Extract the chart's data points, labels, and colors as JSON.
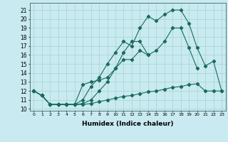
{
  "xlabel": "Humidex (Indice chaleur)",
  "xlim": [
    -0.5,
    23.5
  ],
  "ylim": [
    9.8,
    21.8
  ],
  "yticks": [
    10,
    11,
    12,
    13,
    14,
    15,
    16,
    17,
    18,
    19,
    20,
    21
  ],
  "xticks": [
    0,
    1,
    2,
    3,
    4,
    5,
    6,
    7,
    8,
    9,
    10,
    11,
    12,
    13,
    14,
    15,
    16,
    17,
    18,
    19,
    20,
    21,
    22,
    23
  ],
  "bg_color": "#c8eaf0",
  "grid_color": "#9ecfcc",
  "line_color": "#1a6b5a",
  "lines": [
    {
      "x": [
        0,
        1,
        2,
        3,
        4,
        5,
        6,
        7,
        8,
        9,
        10,
        11,
        12,
        13,
        14,
        15,
        16,
        17,
        18,
        19,
        20,
        21,
        22,
        23
      ],
      "y": [
        12,
        11.5,
        10.5,
        10.5,
        10.5,
        10.5,
        10.5,
        10.6,
        10.8,
        11.0,
        11.2,
        11.4,
        11.5,
        11.7,
        11.9,
        12.0,
        12.2,
        12.4,
        12.5,
        12.7,
        12.8,
        12.0,
        12.0,
        12.0
      ]
    },
    {
      "x": [
        0,
        1,
        2,
        3,
        4,
        5,
        6,
        7,
        8,
        9,
        10,
        11,
        12,
        13,
        14,
        15,
        16,
        17,
        18,
        19,
        20,
        21,
        22,
        23
      ],
      "y": [
        12,
        11.5,
        10.5,
        10.5,
        10.5,
        10.5,
        10.6,
        11.0,
        12.0,
        13.0,
        14.5,
        15.5,
        15.5,
        16.5,
        16.0,
        16.5,
        17.5,
        19.0,
        19.0,
        16.8,
        14.5,
        null,
        null,
        null
      ]
    },
    {
      "x": [
        0,
        1,
        2,
        3,
        4,
        5,
        6,
        7,
        8,
        9,
        10,
        11,
        12,
        13,
        14
      ],
      "y": [
        12,
        11.5,
        10.5,
        10.5,
        10.5,
        10.5,
        12.7,
        13.0,
        13.2,
        13.5,
        14.5,
        16.3,
        17.5,
        17.5,
        16.0
      ]
    },
    {
      "x": [
        0,
        1,
        2,
        3,
        4,
        5,
        6,
        7,
        8,
        9,
        10,
        11,
        12,
        13,
        14,
        15,
        16,
        17,
        18,
        19,
        20,
        21,
        22,
        23
      ],
      "y": [
        12,
        11.5,
        10.5,
        10.5,
        10.5,
        10.5,
        11.0,
        12.5,
        13.5,
        15.0,
        16.3,
        17.5,
        17.0,
        19.0,
        20.3,
        19.8,
        20.5,
        21.0,
        21.0,
        19.5,
        16.8,
        14.8,
        15.3,
        12.0
      ]
    }
  ]
}
